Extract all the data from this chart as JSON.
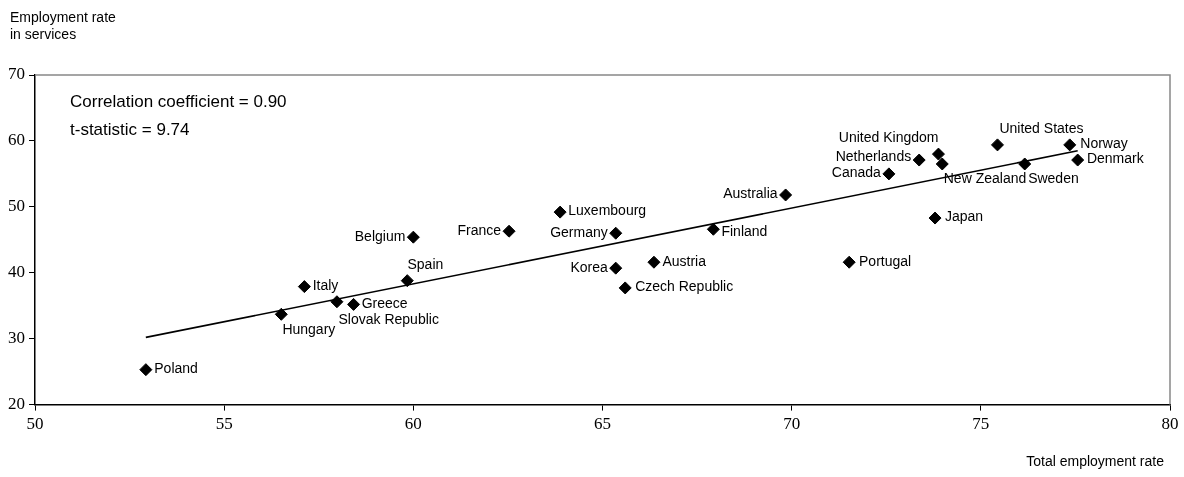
{
  "chart_data": {
    "type": "scatter",
    "xlabel": "Total employment rate",
    "ylabel": "Employment rate in services",
    "annotations": [
      "Correlation coefficient = 0.90",
      "t-statistic = 9.74"
    ],
    "xlim": [
      50,
      80
    ],
    "xticks": [
      50,
      55,
      60,
      65,
      70,
      75,
      80
    ],
    "ylim": [
      20,
      70
    ],
    "yticks": [
      20,
      30,
      40,
      50,
      60,
      70
    ],
    "grid": false,
    "legend": false,
    "marker": "diamond",
    "series": [
      {
        "name": "Poland",
        "color": "#000000",
        "x": [
          52.93
        ],
        "values": [
          25.3
        ]
      },
      {
        "name": "Hungary",
        "color": "#000000",
        "x": [
          56.51
        ],
        "values": [
          33.7
        ]
      },
      {
        "name": "Italy",
        "color": "#000000",
        "x": [
          57.12
        ],
        "values": [
          37.9
        ]
      },
      {
        "name": "Slovak Republic",
        "color": "#000000",
        "x": [
          57.98
        ],
        "values": [
          35.6
        ]
      },
      {
        "name": "Greece",
        "color": "#000000",
        "x": [
          58.42
        ],
        "values": [
          35.2
        ]
      },
      {
        "name": "Spain",
        "color": "#000000",
        "x": [
          59.84
        ],
        "values": [
          38.8
        ]
      },
      {
        "name": "Belgium",
        "color": "#000000",
        "x": [
          60.0
        ],
        "values": [
          45.4
        ]
      },
      {
        "name": "France",
        "color": "#000000",
        "x": [
          62.53
        ],
        "values": [
          46.3
        ]
      },
      {
        "name": "Luxembourg",
        "color": "#000000",
        "x": [
          63.88
        ],
        "values": [
          49.2
        ]
      },
      {
        "name": "Germany",
        "color": "#000000",
        "x": [
          65.35
        ],
        "values": [
          46.0
        ]
      },
      {
        "name": "Korea",
        "color": "#000000",
        "x": [
          65.35
        ],
        "values": [
          40.7
        ]
      },
      {
        "name": "Czech Republic",
        "color": "#000000",
        "x": [
          65.6
        ],
        "values": [
          37.7
        ]
      },
      {
        "name": "Austria",
        "color": "#000000",
        "x": [
          66.36
        ],
        "values": [
          41.6
        ]
      },
      {
        "name": "Finland",
        "color": "#000000",
        "x": [
          67.93
        ],
        "values": [
          46.6
        ]
      },
      {
        "name": "Australia",
        "color": "#000000",
        "x": [
          69.84
        ],
        "values": [
          51.8
        ]
      },
      {
        "name": "Portugal",
        "color": "#000000",
        "x": [
          71.52
        ],
        "values": [
          41.6
        ]
      },
      {
        "name": "Canada",
        "color": "#000000",
        "x": [
          72.57
        ],
        "values": [
          55.0
        ]
      },
      {
        "name": "Netherlands",
        "color": "#000000",
        "x": [
          73.37
        ],
        "values": [
          57.1
        ]
      },
      {
        "name": "United Kingdom",
        "color": "#000000",
        "x": [
          73.88
        ],
        "values": [
          58.0
        ]
      },
      {
        "name": "New Zealand",
        "color": "#000000",
        "x": [
          73.98
        ],
        "values": [
          56.5
        ]
      },
      {
        "name": "Japan",
        "color": "#000000",
        "x": [
          73.79
        ],
        "values": [
          48.3
        ]
      },
      {
        "name": "United States",
        "color": "#000000",
        "x": [
          75.44
        ],
        "values": [
          59.4
        ]
      },
      {
        "name": "Sweden",
        "color": "#000000",
        "x": [
          76.16
        ],
        "values": [
          56.5
        ]
      },
      {
        "name": "Norway",
        "color": "#000000",
        "x": [
          77.35
        ],
        "values": [
          59.4
        ]
      },
      {
        "name": "Denmark",
        "color": "#000000",
        "x": [
          77.56
        ],
        "values": [
          57.1
        ]
      },
      {
        "type": "line",
        "color": "#000000",
        "x": [
          52.93,
          77.56
        ],
        "values": [
          30.2,
          58.5
        ],
        "marker": "none",
        "line_style": "solid"
      }
    ]
  }
}
